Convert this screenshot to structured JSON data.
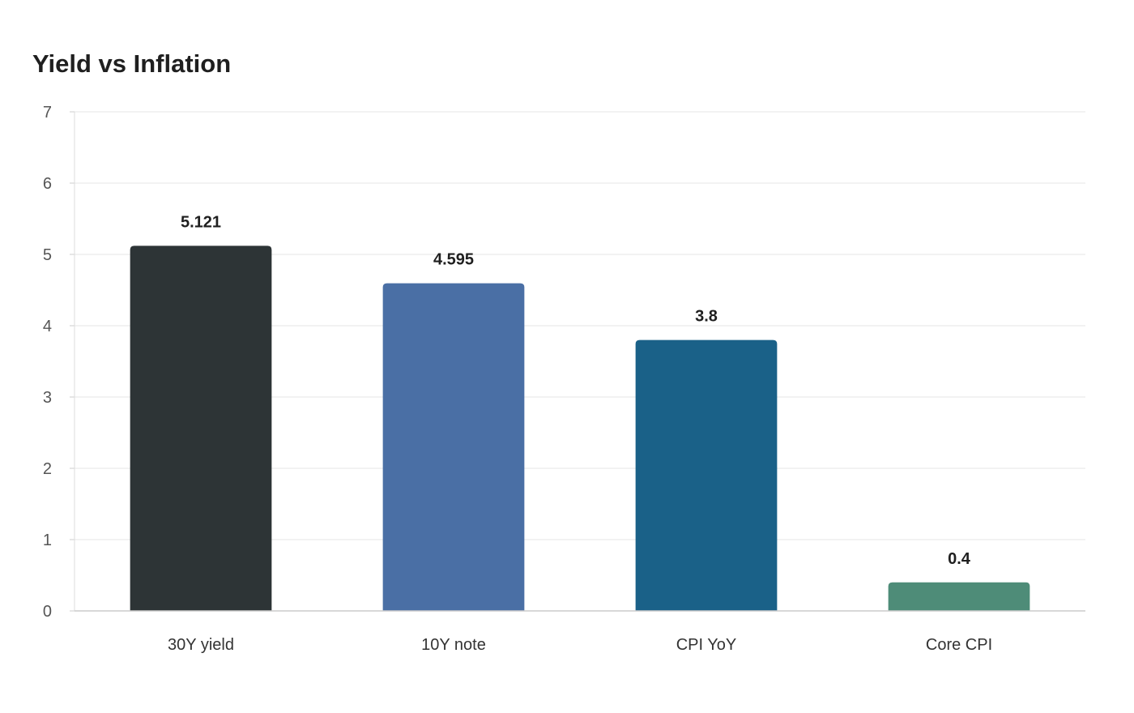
{
  "chart_data": {
    "type": "bar",
    "title": "Yield vs Inflation",
    "xlabel": "",
    "ylabel": "",
    "categories": [
      "30Y yield",
      "10Y note",
      "CPI YoY",
      "Core CPI"
    ],
    "values": [
      5.121,
      4.595,
      3.8,
      0.4
    ],
    "data_labels": [
      "5.121",
      "4.595",
      "3.8",
      "0.4"
    ],
    "colors": [
      "#2d3436",
      "#4a6fa5",
      "#1a6188",
      "#4e8c78"
    ],
    "ylim": [
      0,
      7
    ],
    "yticks": [
      0,
      1,
      2,
      3,
      4,
      5,
      6,
      7
    ],
    "grid": true,
    "legend": "none"
  }
}
